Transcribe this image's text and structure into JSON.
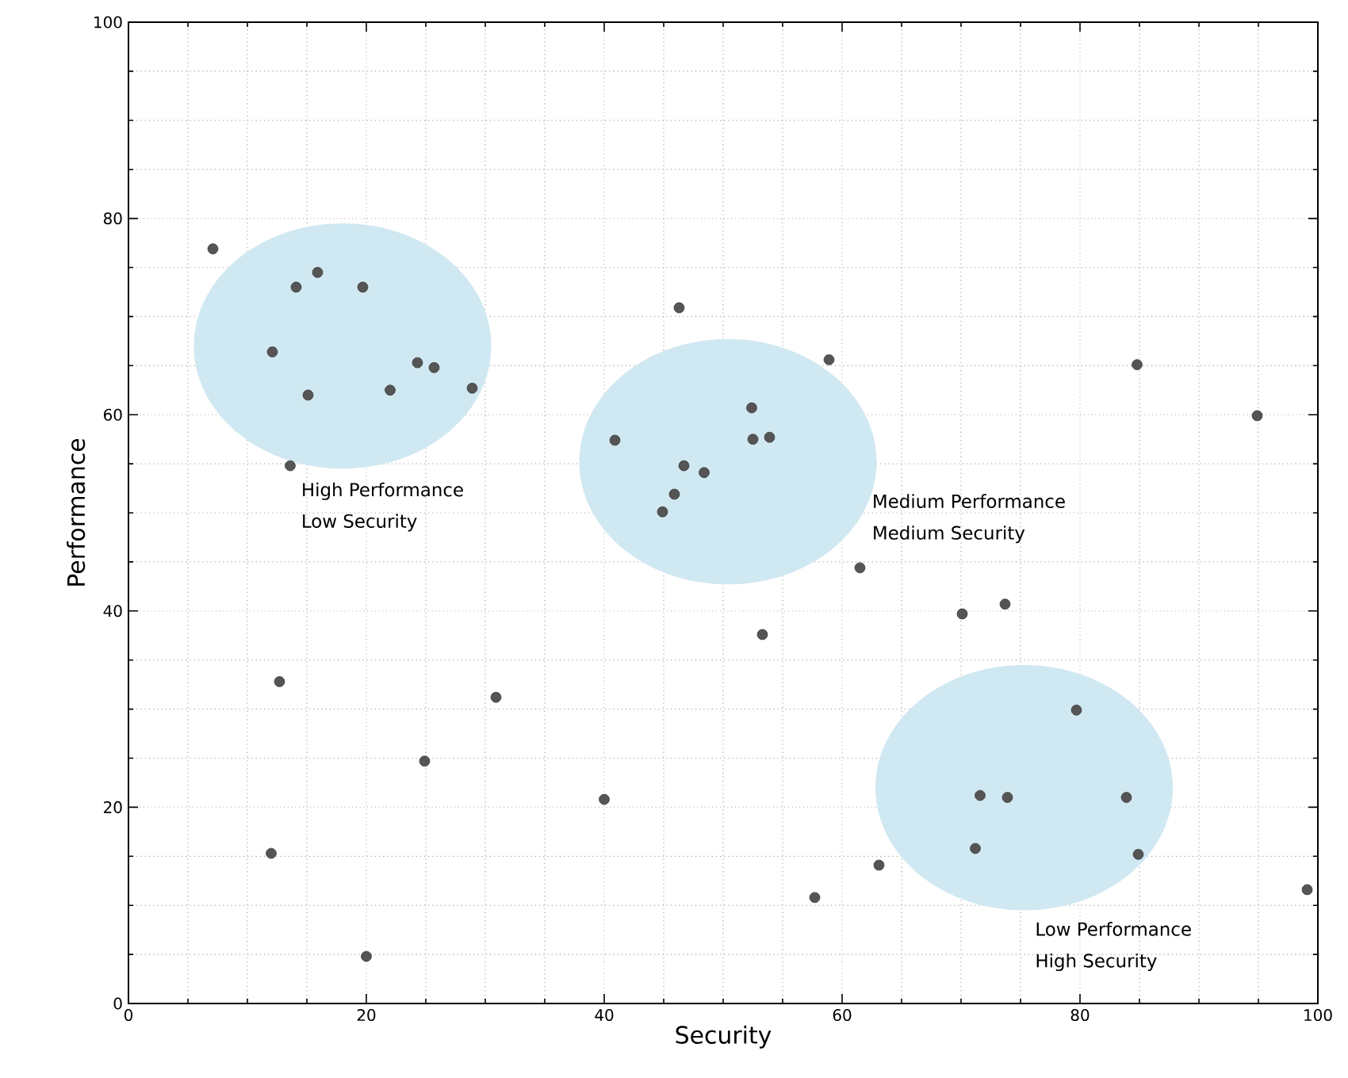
{
  "chart_data": {
    "type": "scatter",
    "xlabel": "Security",
    "ylabel": "Performance",
    "xlim": [
      0,
      100
    ],
    "ylim": [
      0,
      100
    ],
    "xticks": [
      0,
      20,
      40,
      60,
      80,
      100
    ],
    "yticks": [
      0,
      20,
      40,
      60,
      80,
      100
    ],
    "grid": true,
    "marker": "circle",
    "series": [
      {
        "color": "#555555",
        "x": [
          7.1,
          14.1,
          15.9,
          19.7,
          12.1,
          15.1,
          22.0,
          24.3,
          25.7,
          28.9,
          13.6,
          46.3,
          58.9,
          52.4,
          52.5,
          53.9,
          40.9,
          46.7,
          48.4,
          45.9,
          44.9,
          61.5,
          53.3,
          70.1,
          73.7,
          79.7,
          71.6,
          73.9,
          83.9,
          71.2,
          84.9,
          63.1,
          57.7,
          99.1,
          12.0,
          12.7,
          20.0,
          24.9,
          30.9,
          40.0,
          84.8,
          94.9
        ],
        "values": [
          76.9,
          73.0,
          74.5,
          73.0,
          66.4,
          62.0,
          62.5,
          65.3,
          64.8,
          62.7,
          54.8,
          70.9,
          65.6,
          60.7,
          57.5,
          57.7,
          57.4,
          54.8,
          54.1,
          51.9,
          50.1,
          44.4,
          37.6,
          39.7,
          40.7,
          29.9,
          21.2,
          21.0,
          21.0,
          15.8,
          15.2,
          14.1,
          10.8,
          11.6,
          15.3,
          32.8,
          4.8,
          24.7,
          31.2,
          20.8,
          65.1,
          59.9
        ]
      }
    ],
    "annotations": [
      "High Performance",
      "Low Security",
      "Medium Performance",
      "Medium Security",
      "Low Performance",
      "High Security"
    ]
  }
}
